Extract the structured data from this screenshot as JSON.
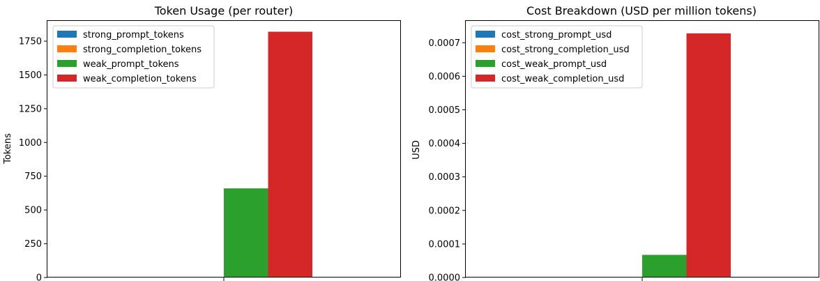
{
  "chart_data": [
    {
      "type": "bar",
      "title": "Token Usage (per router)",
      "xlabel": "",
      "ylabel": "Tokens",
      "categories": [
        ""
      ],
      "ylim": [
        0,
        1900
      ],
      "yticks": [
        "0",
        "250",
        "500",
        "750",
        "1000",
        "1250",
        "1500",
        "1750"
      ],
      "grid": false,
      "legend_position": "top-left",
      "series": [
        {
          "name": "strong_prompt_tokens",
          "color": "#1f77b4",
          "values": [
            0
          ]
        },
        {
          "name": "strong_completion_tokens",
          "color": "#ff7f0e",
          "values": [
            0
          ]
        },
        {
          "name": "weak_prompt_tokens",
          "color": "#2ca02c",
          "values": [
            660
          ]
        },
        {
          "name": "weak_completion_tokens",
          "color": "#d62728",
          "values": [
            1820
          ]
        }
      ]
    },
    {
      "type": "bar",
      "title": "Cost Breakdown (USD per million tokens)",
      "xlabel": "",
      "ylabel": "USD",
      "categories": [
        ""
      ],
      "ylim": [
        0,
        0.000765
      ],
      "yticks": [
        "0.0000",
        "0.0001",
        "0.0002",
        "0.0003",
        "0.0004",
        "0.0005",
        "0.0006",
        "0.0007"
      ],
      "grid": false,
      "legend_position": "top-left",
      "series": [
        {
          "name": "cost_strong_prompt_usd",
          "color": "#1f77b4",
          "values": [
            0
          ]
        },
        {
          "name": "cost_strong_completion_usd",
          "color": "#ff7f0e",
          "values": [
            0
          ]
        },
        {
          "name": "cost_weak_prompt_usd",
          "color": "#2ca02c",
          "values": [
            6.75e-05
          ]
        },
        {
          "name": "cost_weak_completion_usd",
          "color": "#d62728",
          "values": [
            0.000728
          ]
        }
      ]
    }
  ]
}
